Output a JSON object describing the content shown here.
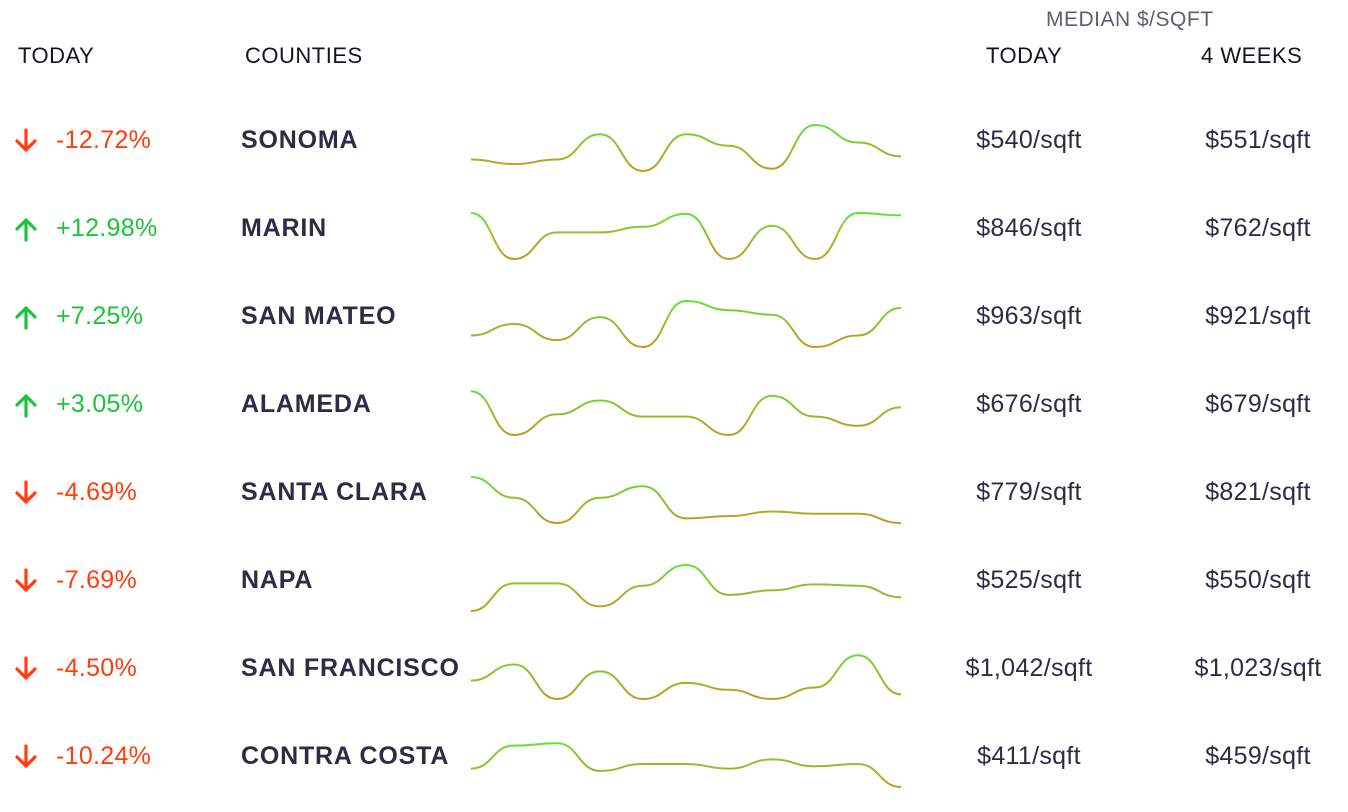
{
  "header": {
    "today_label": "TODAY",
    "counties_label": "COUNTIES",
    "median_group_label": "MEDIAN $/SQFT",
    "median_today_label": "TODAY",
    "median_weeks_label": "4 WEEKS"
  },
  "colors": {
    "up": "#1fc23c",
    "down": "#ff3d0f",
    "spark_high": "#4ff03b",
    "spark_low": "#f07a1a",
    "text": "#2e2b45"
  },
  "rows": [
    {
      "direction": "down",
      "arrow_icon": "arrow-down-icon",
      "change": "-12.72%",
      "county": "SONOMA",
      "median_today": "$540/sqft",
      "median_4_weeks": "$551/sqft",
      "trend": [
        0.25,
        0.15,
        0.25,
        0.8,
        0.0,
        0.8,
        0.55,
        0.05,
        1.0,
        0.62,
        0.32
      ]
    },
    {
      "direction": "up",
      "arrow_icon": "arrow-up-icon",
      "change": "+12.98%",
      "county": "MARIN",
      "median_today": "$846/sqft",
      "median_4_weeks": "$762/sqft",
      "trend": [
        1.0,
        0.0,
        0.58,
        0.58,
        0.7,
        0.98,
        0.0,
        0.72,
        0.0,
        1.0,
        0.95
      ]
    },
    {
      "direction": "up",
      "arrow_icon": "arrow-up-icon",
      "change": "+7.25%",
      "county": "SAN MATEO",
      "median_today": "$963/sqft",
      "median_4_weeks": "$921/sqft",
      "trend": [
        0.25,
        0.5,
        0.15,
        0.65,
        0.0,
        1.0,
        0.8,
        0.7,
        0.0,
        0.25,
        0.85
      ]
    },
    {
      "direction": "up",
      "arrow_icon": "arrow-up-icon",
      "change": "+3.05%",
      "county": "ALAMEDA",
      "median_today": "$676/sqft",
      "median_4_weeks": "$679/sqft",
      "trend": [
        0.95,
        0.0,
        0.45,
        0.75,
        0.4,
        0.4,
        0.0,
        0.85,
        0.4,
        0.2,
        0.6
      ]
    },
    {
      "direction": "down",
      "arrow_icon": "arrow-down-icon",
      "change": "-4.69%",
      "county": "SANTA CLARA",
      "median_today": "$779/sqft",
      "median_4_weeks": "$821/sqft",
      "trend": [
        1.0,
        0.55,
        0.0,
        0.55,
        0.8,
        0.1,
        0.15,
        0.25,
        0.2,
        0.2,
        0.0
      ]
    },
    {
      "direction": "down",
      "arrow_icon": "arrow-down-icon",
      "change": "-7.69%",
      "county": "NAPA",
      "median_today": "$525/sqft",
      "median_4_weeks": "$550/sqft",
      "trend": [
        0.0,
        0.6,
        0.6,
        0.1,
        0.55,
        1.0,
        0.35,
        0.45,
        0.58,
        0.55,
        0.3
      ]
    },
    {
      "direction": "down",
      "arrow_icon": "arrow-down-icon",
      "change": "-4.50%",
      "county": "SAN FRANCISCO",
      "median_today": "$1,042/sqft",
      "median_4_weeks": "$1,023/sqft",
      "trend": [
        0.4,
        0.75,
        0.0,
        0.6,
        0.0,
        0.35,
        0.2,
        0.0,
        0.25,
        0.95,
        0.1
      ]
    },
    {
      "direction": "down",
      "arrow_icon": "arrow-down-icon",
      "change": "-10.24%",
      "county": "CONTRA COSTA",
      "median_today": "$411/sqft",
      "median_4_weeks": "$459/sqft",
      "trend": [
        0.4,
        0.9,
        0.95,
        0.35,
        0.5,
        0.5,
        0.4,
        0.6,
        0.45,
        0.5,
        0.0
      ]
    }
  ]
}
